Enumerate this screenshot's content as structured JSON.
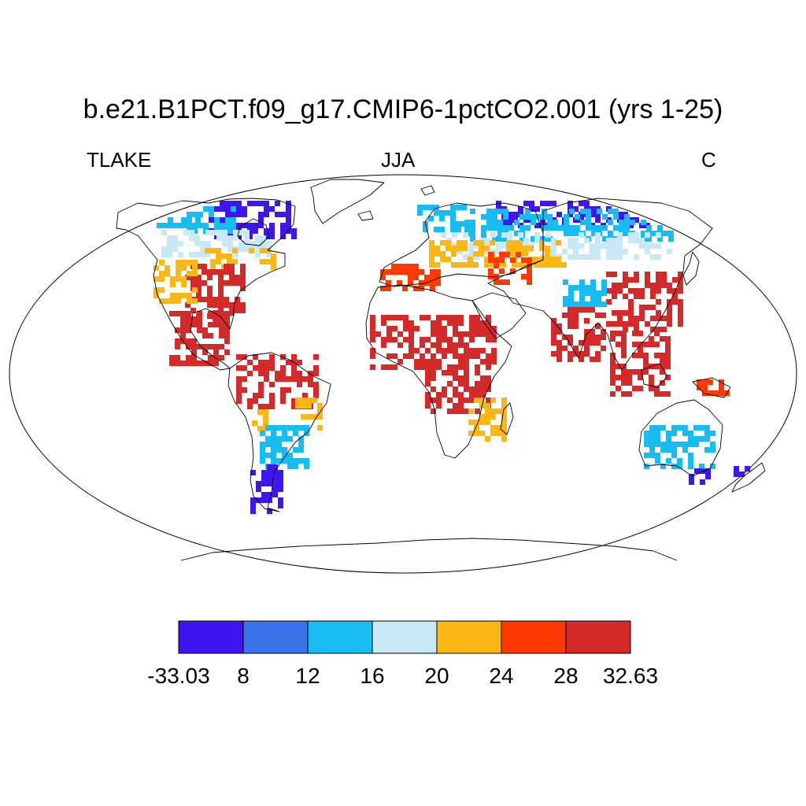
{
  "title": "b.e21.B1PCT.f09_g17.CMIP6-1pctCO2.001 (yrs 1-25)",
  "left_label": "TLAKE",
  "center_label": "JJA",
  "right_label": "C",
  "colorbar": {
    "colors": [
      "#4016F0",
      "#3A74E8",
      "#17BDF2",
      "#C8E8F5",
      "#FBB815",
      "#FF3A00",
      "#D52A2A"
    ],
    "labels": [
      "-33.03",
      "8",
      "12",
      "16",
      "20",
      "24",
      "28",
      "32.63"
    ]
  },
  "regions": [
    {
      "name": "northern-canada",
      "color_index": 0
    },
    {
      "name": "canada-mid",
      "color_index": 2
    },
    {
      "name": "canada-south",
      "color_index": 3
    },
    {
      "name": "northeast-us",
      "color_index": 4
    },
    {
      "name": "eastern-us",
      "color_index": 6
    },
    {
      "name": "western-us",
      "color_index": 4
    },
    {
      "name": "central-america",
      "color_index": 6
    },
    {
      "name": "amazon",
      "color_index": 6
    },
    {
      "name": "brazil-east",
      "color_index": 4
    },
    {
      "name": "argentina",
      "color_index": 2
    },
    {
      "name": "patagonia",
      "color_index": 0
    },
    {
      "name": "scandinavia",
      "color_index": 2
    },
    {
      "name": "siberia-north",
      "color_index": 0
    },
    {
      "name": "siberia-mid",
      "color_index": 2
    },
    {
      "name": "russia-south",
      "color_index": 3
    },
    {
      "name": "central-asia",
      "color_index": 4
    },
    {
      "name": "mediterranean",
      "color_index": 5
    },
    {
      "name": "china",
      "color_index": 6
    },
    {
      "name": "tibet",
      "color_index": 2
    },
    {
      "name": "india",
      "color_index": 6
    },
    {
      "name": "southeast-asia",
      "color_index": 6
    },
    {
      "name": "sahel",
      "color_index": 6
    },
    {
      "name": "central-africa",
      "color_index": 6
    },
    {
      "name": "east-africa",
      "color_index": 4
    },
    {
      "name": "new-guinea",
      "color_index": 5
    },
    {
      "name": "australia-south",
      "color_index": 2
    },
    {
      "name": "new-zealand",
      "color_index": 0
    },
    {
      "name": "tasmania",
      "color_index": 0
    }
  ]
}
